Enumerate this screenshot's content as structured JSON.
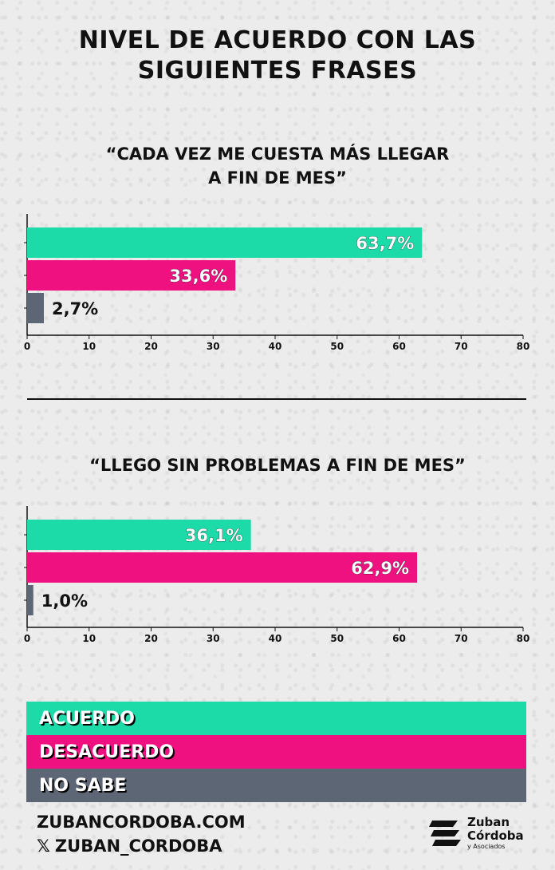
{
  "title_line1": "NIVEL DE ACUERDO CON LAS",
  "title_line2": "SIGUIENTES FRASES",
  "colors": {
    "acuerdo": "#1ddba8",
    "desacuerdo": "#ee117f",
    "no_sabe": "#5d6674"
  },
  "chart_data": [
    {
      "type": "bar",
      "orientation": "horizontal",
      "title_line1": "“CADA VEZ ME CUESTA MÁS LLEGAR",
      "title_line2": "A FIN DE MES”",
      "categories": [
        "ACUERDO",
        "DESACUERDO",
        "NO SABE"
      ],
      "values": [
        63.7,
        33.6,
        2.7
      ],
      "labels": [
        "63,7%",
        "33,6%",
        "2,7%"
      ],
      "xlim": [
        0,
        80
      ],
      "xticks": [
        "0",
        "10",
        "20",
        "30",
        "40",
        "50",
        "60",
        "70",
        "80"
      ]
    },
    {
      "type": "bar",
      "orientation": "horizontal",
      "title": "“LLEGO SIN PROBLEMAS A FIN DE MES”",
      "categories": [
        "ACUERDO",
        "DESACUERDO",
        "NO SABE"
      ],
      "values": [
        36.1,
        62.9,
        1.0
      ],
      "labels": [
        "36,1%",
        "62,9%",
        "1,0%"
      ],
      "xlim": [
        0,
        80
      ],
      "xticks": [
        "0",
        "10",
        "20",
        "30",
        "40",
        "50",
        "60",
        "70",
        "80"
      ]
    }
  ],
  "legend": [
    "ACUERDO",
    "DESACUERDO",
    "NO SABE"
  ],
  "footer": {
    "website": "ZUBANCORDOBA.COM",
    "x_icon": "x-logo-icon",
    "handle": "ZUBAN_CORDOBA"
  },
  "logo": {
    "name_line1": "Zuban",
    "name_line2": "Córdoba",
    "sub": "y Asociados"
  }
}
